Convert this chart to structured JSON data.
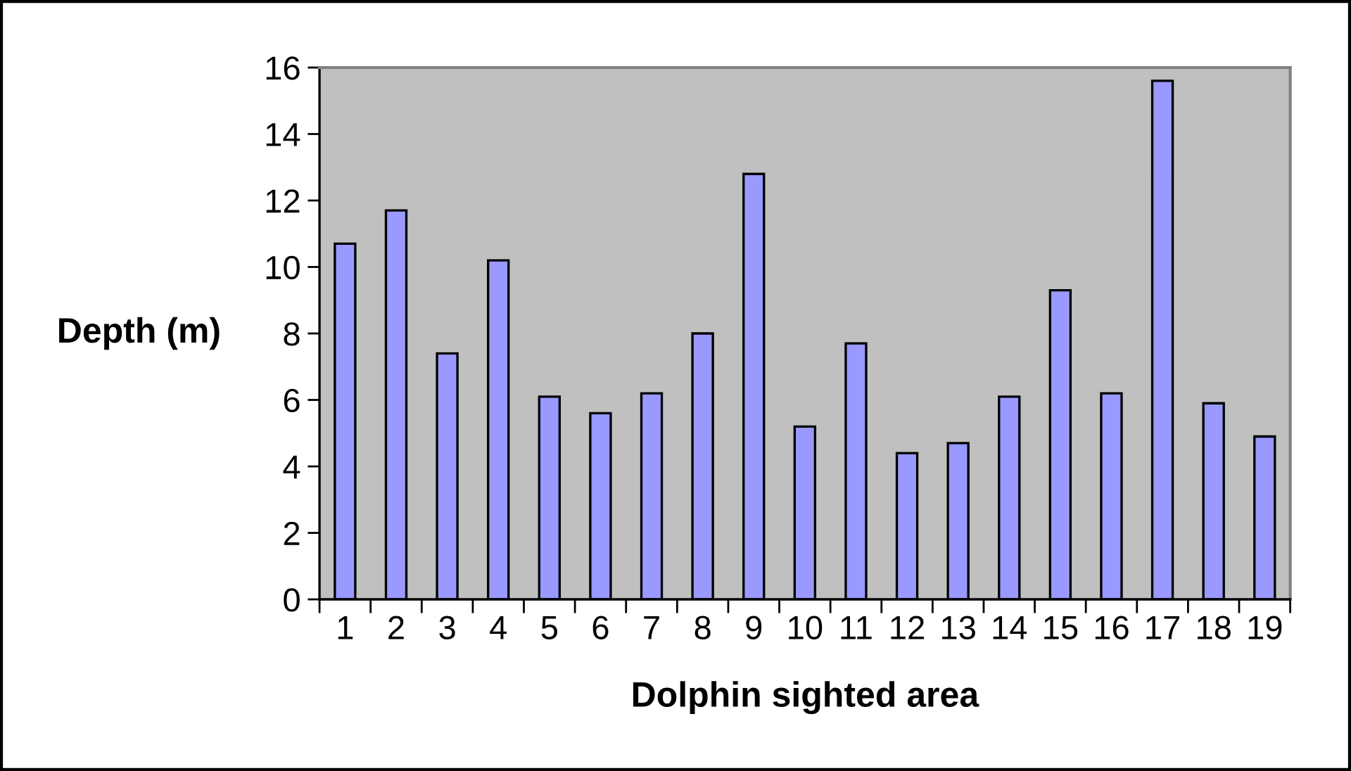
{
  "chart_data": {
    "type": "bar",
    "xlabel": "Dolphin sighted area",
    "ylabel": "Depth (m)",
    "categories": [
      "1",
      "2",
      "3",
      "4",
      "5",
      "6",
      "7",
      "8",
      "9",
      "10",
      "11",
      "12",
      "13",
      "14",
      "15",
      "16",
      "17",
      "18",
      "19"
    ],
    "values": [
      10.7,
      11.7,
      7.4,
      10.2,
      6.1,
      5.6,
      6.2,
      8.0,
      12.8,
      5.2,
      7.7,
      4.4,
      4.7,
      6.1,
      9.3,
      6.2,
      15.6,
      5.9,
      4.9
    ],
    "color": "#9999ff",
    "ylim": [
      0,
      16
    ],
    "yticks": [
      0,
      2,
      4,
      6,
      8,
      10,
      12,
      14,
      16
    ]
  }
}
